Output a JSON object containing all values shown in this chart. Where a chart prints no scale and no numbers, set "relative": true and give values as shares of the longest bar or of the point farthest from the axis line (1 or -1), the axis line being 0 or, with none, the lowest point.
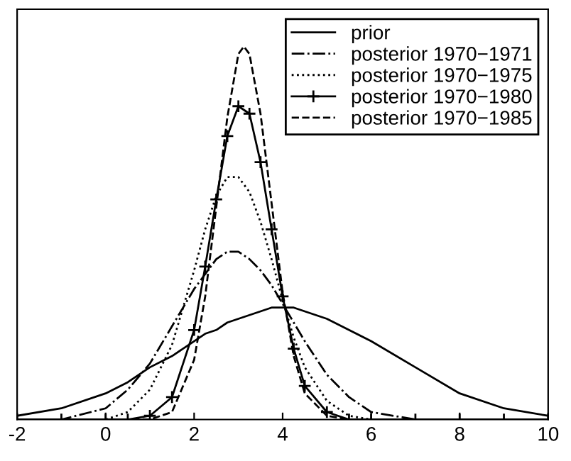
{
  "chart_data": {
    "type": "line",
    "relative": true,
    "tick_labels": "x",
    "grid": false,
    "legend": "top right",
    "x": [
      -2,
      -1,
      0,
      0.5,
      1,
      1.5,
      2,
      2.25,
      2.5,
      2.75,
      3,
      3.25,
      3.5,
      3.75,
      4,
      4.25,
      4.5,
      5,
      5.5,
      6,
      7,
      8,
      9,
      10
    ],
    "xlim": [
      -2,
      10
    ],
    "xticks": [
      -2,
      0,
      2,
      4,
      6,
      8,
      10
    ],
    "series": [
      {
        "name": "prior",
        "color": "#000000",
        "line_style": "solid",
        "marker": "none",
        "values": [
          0.01,
          0.03,
          0.07,
          0.1,
          0.14,
          0.17,
          0.21,
          0.23,
          0.24,
          0.26,
          0.27,
          0.28,
          0.29,
          0.3,
          0.3,
          0.3,
          0.29,
          0.27,
          0.24,
          0.21,
          0.14,
          0.07,
          0.03,
          0.01
        ]
      },
      {
        "name": "posterior 1970−1971",
        "color": "#000000",
        "line_style": "dashdot",
        "marker": "none",
        "values": [
          0.0,
          0.0,
          0.03,
          0.08,
          0.15,
          0.25,
          0.35,
          0.39,
          0.43,
          0.45,
          0.45,
          0.43,
          0.4,
          0.36,
          0.31,
          0.26,
          0.21,
          0.12,
          0.06,
          0.02,
          0.0,
          0.0,
          0.0,
          0.0
        ]
      },
      {
        "name": "posterior 1970−1975",
        "color": "#000000",
        "line_style": "dotted",
        "marker": "none",
        "values": [
          0.0,
          0.0,
          0.0,
          0.02,
          0.08,
          0.2,
          0.4,
          0.51,
          0.6,
          0.65,
          0.65,
          0.61,
          0.53,
          0.43,
          0.32,
          0.22,
          0.14,
          0.05,
          0.01,
          0.0,
          0.0,
          0.0,
          0.0,
          0.0
        ]
      },
      {
        "name": "posterior 1970−1980",
        "color": "#000000",
        "line_style": "solid",
        "marker": "cross",
        "values": [
          0.0,
          0.0,
          0.0,
          0.0,
          0.01,
          0.06,
          0.24,
          0.41,
          0.59,
          0.76,
          0.84,
          0.82,
          0.69,
          0.51,
          0.33,
          0.19,
          0.09,
          0.02,
          0.0,
          0.0,
          0.0,
          0.0,
          0.0,
          0.0
        ]
      },
      {
        "name": "posterior 1970−1985",
        "color": "#000000",
        "line_style": "dashed",
        "marker": "none",
        "x": [
          -2,
          0,
          1,
          1.5,
          2,
          2.25,
          2.5,
          2.75,
          3,
          3.125,
          3.25,
          3.5,
          3.75,
          4,
          4.25,
          4.5,
          5,
          5.5,
          6,
          10
        ],
        "values": [
          0.0,
          0.0,
          0.0,
          0.02,
          0.16,
          0.33,
          0.57,
          0.81,
          0.98,
          1.0,
          0.98,
          0.82,
          0.58,
          0.34,
          0.17,
          0.07,
          0.01,
          0.0,
          0.0,
          0.0
        ]
      }
    ]
  }
}
